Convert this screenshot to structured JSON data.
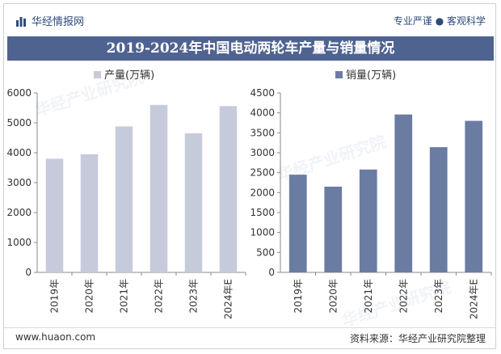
{
  "header": {
    "brand": "华经情报网",
    "tagline": "专业严谨 ● 客观科学"
  },
  "title": "2019-2024年中国电动两轮车产量与销量情况",
  "footer": {
    "url": "www.huaon.com",
    "source": "资料来源：华经产业研究院整理"
  },
  "watermark": "华经产业研究院",
  "colors": {
    "title_bg": "#4f6391",
    "production_bar": "#c5cbdb",
    "sales_bar": "#6b7ca3",
    "axis": "#888888"
  },
  "chart_data": [
    {
      "type": "bar",
      "legend": "产量(万辆)",
      "categories": [
        "2019年",
        "2020年",
        "2021年",
        "2022年",
        "2023年",
        "2024年E"
      ],
      "values": [
        3800,
        3950,
        4880,
        5600,
        4650,
        5560
      ],
      "ylim": [
        0,
        6000
      ],
      "yticks": [
        0,
        1000,
        2000,
        3000,
        4000,
        5000,
        6000
      ],
      "grid": false
    },
    {
      "type": "bar",
      "legend": "销量(万辆)",
      "categories": [
        "2019年",
        "2020年",
        "2021年",
        "2022年",
        "2023年",
        "2024年E"
      ],
      "values": [
        2450,
        2150,
        2580,
        3960,
        3140,
        3800
      ],
      "ylim": [
        0,
        4500
      ],
      "yticks": [
        0,
        500,
        1000,
        1500,
        2000,
        2500,
        3000,
        3500,
        4000,
        4500
      ],
      "grid": false
    }
  ]
}
